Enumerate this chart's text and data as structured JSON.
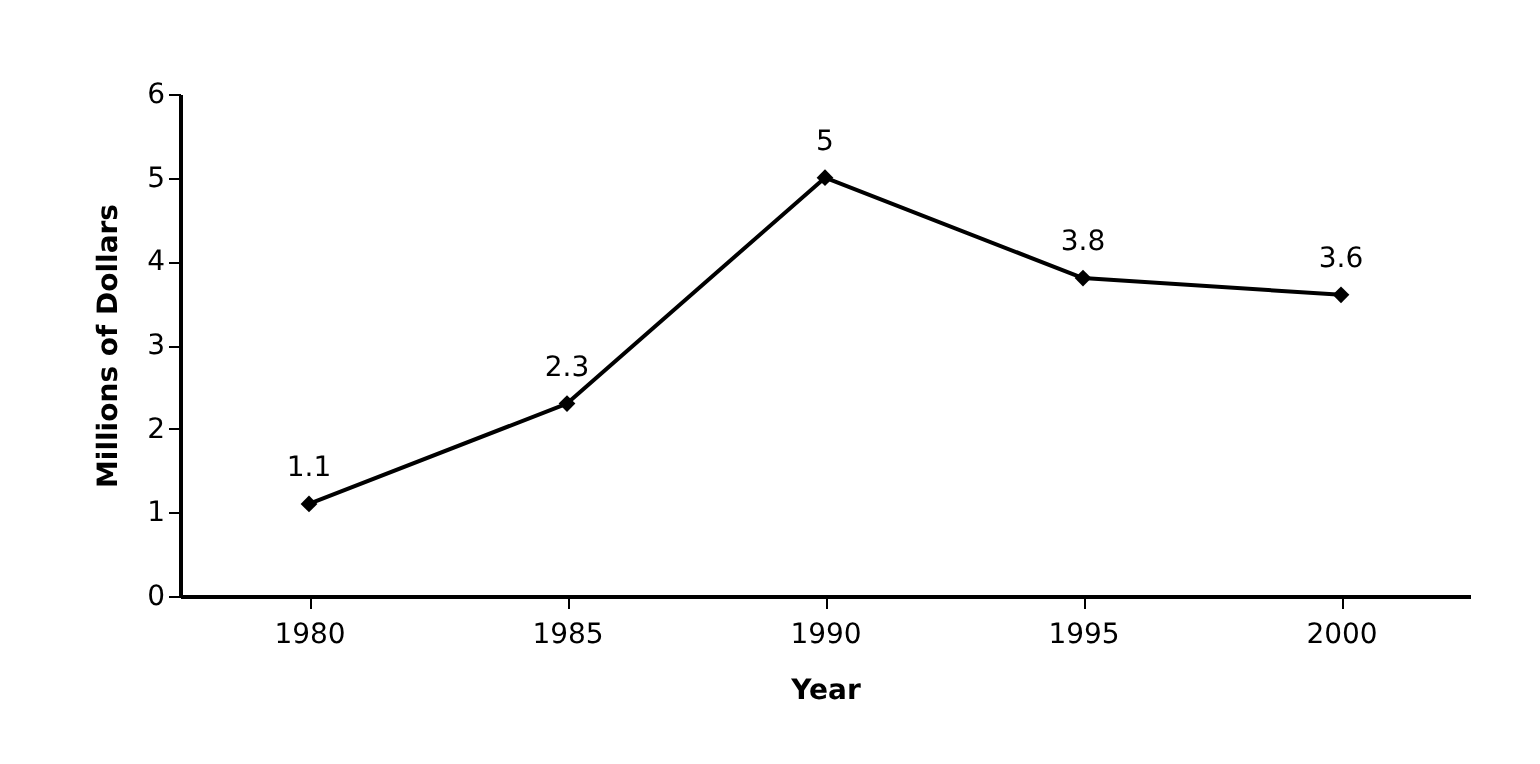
{
  "chart_data": {
    "type": "line",
    "xlabel": "Year",
    "ylabel": "Millions of Dollars",
    "categories": [
      "1980",
      "1985",
      "1990",
      "1995",
      "2000"
    ],
    "series": [
      {
        "color": "#000000",
        "values": [
          1.1,
          2.3,
          5,
          3.8,
          3.6
        ]
      }
    ],
    "ylim": [
      0,
      6
    ],
    "yticks": [
      0,
      1,
      2,
      3,
      4,
      5,
      6
    ],
    "grid": false,
    "legend": false,
    "marker": "diamond",
    "line_style": "solid",
    "data_labels": true
  }
}
